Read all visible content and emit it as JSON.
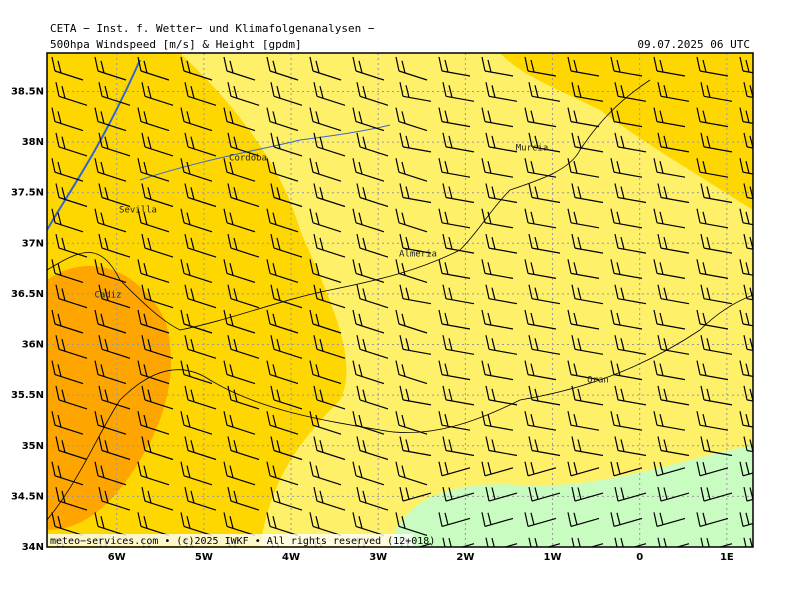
{
  "header": {
    "title": "CETA − Inst. f. Wetter− und Klimafolgenanalysen −",
    "subtitle": "500hpa Windspeed [m/s] & Height [gpdm]",
    "datetime": "09.07.2025 06 UTC"
  },
  "map": {
    "lonlim": [
      -6.8,
      1.3
    ],
    "latlim": [
      34,
      38.88
    ],
    "lon_ticks": [
      {
        "value": -6,
        "label": "6W"
      },
      {
        "value": -5,
        "label": "5W"
      },
      {
        "value": -4,
        "label": "4W"
      },
      {
        "value": -3,
        "label": "3W"
      },
      {
        "value": -2,
        "label": "2W"
      },
      {
        "value": -1,
        "label": "1W"
      },
      0,
      {
        "value": 1,
        "label": "1E"
      }
    ],
    "lat_ticks": [
      {
        "value": 34,
        "label": "34N"
      },
      {
        "value": 34.5,
        "label": "34.5N"
      },
      {
        "value": 35,
        "label": "35N"
      },
      {
        "value": 35.5,
        "label": "35.5N"
      },
      {
        "value": 36,
        "label": "36N"
      },
      {
        "value": 36.5,
        "label": "36.5N"
      },
      {
        "value": 37,
        "label": "37N"
      },
      {
        "value": 37.5,
        "label": "37.5N"
      },
      {
        "value": 38,
        "label": "38N"
      },
      {
        "value": 38.5,
        "label": "38.5N"
      }
    ],
    "cities": [
      "Cordoba",
      "Sevilla",
      "Cadiz",
      "Almeria",
      "Murcia",
      "Oran"
    ]
  },
  "footer": "meteo−services.com • (c)2025 IWKF • All rights reserved (12+018)"
}
